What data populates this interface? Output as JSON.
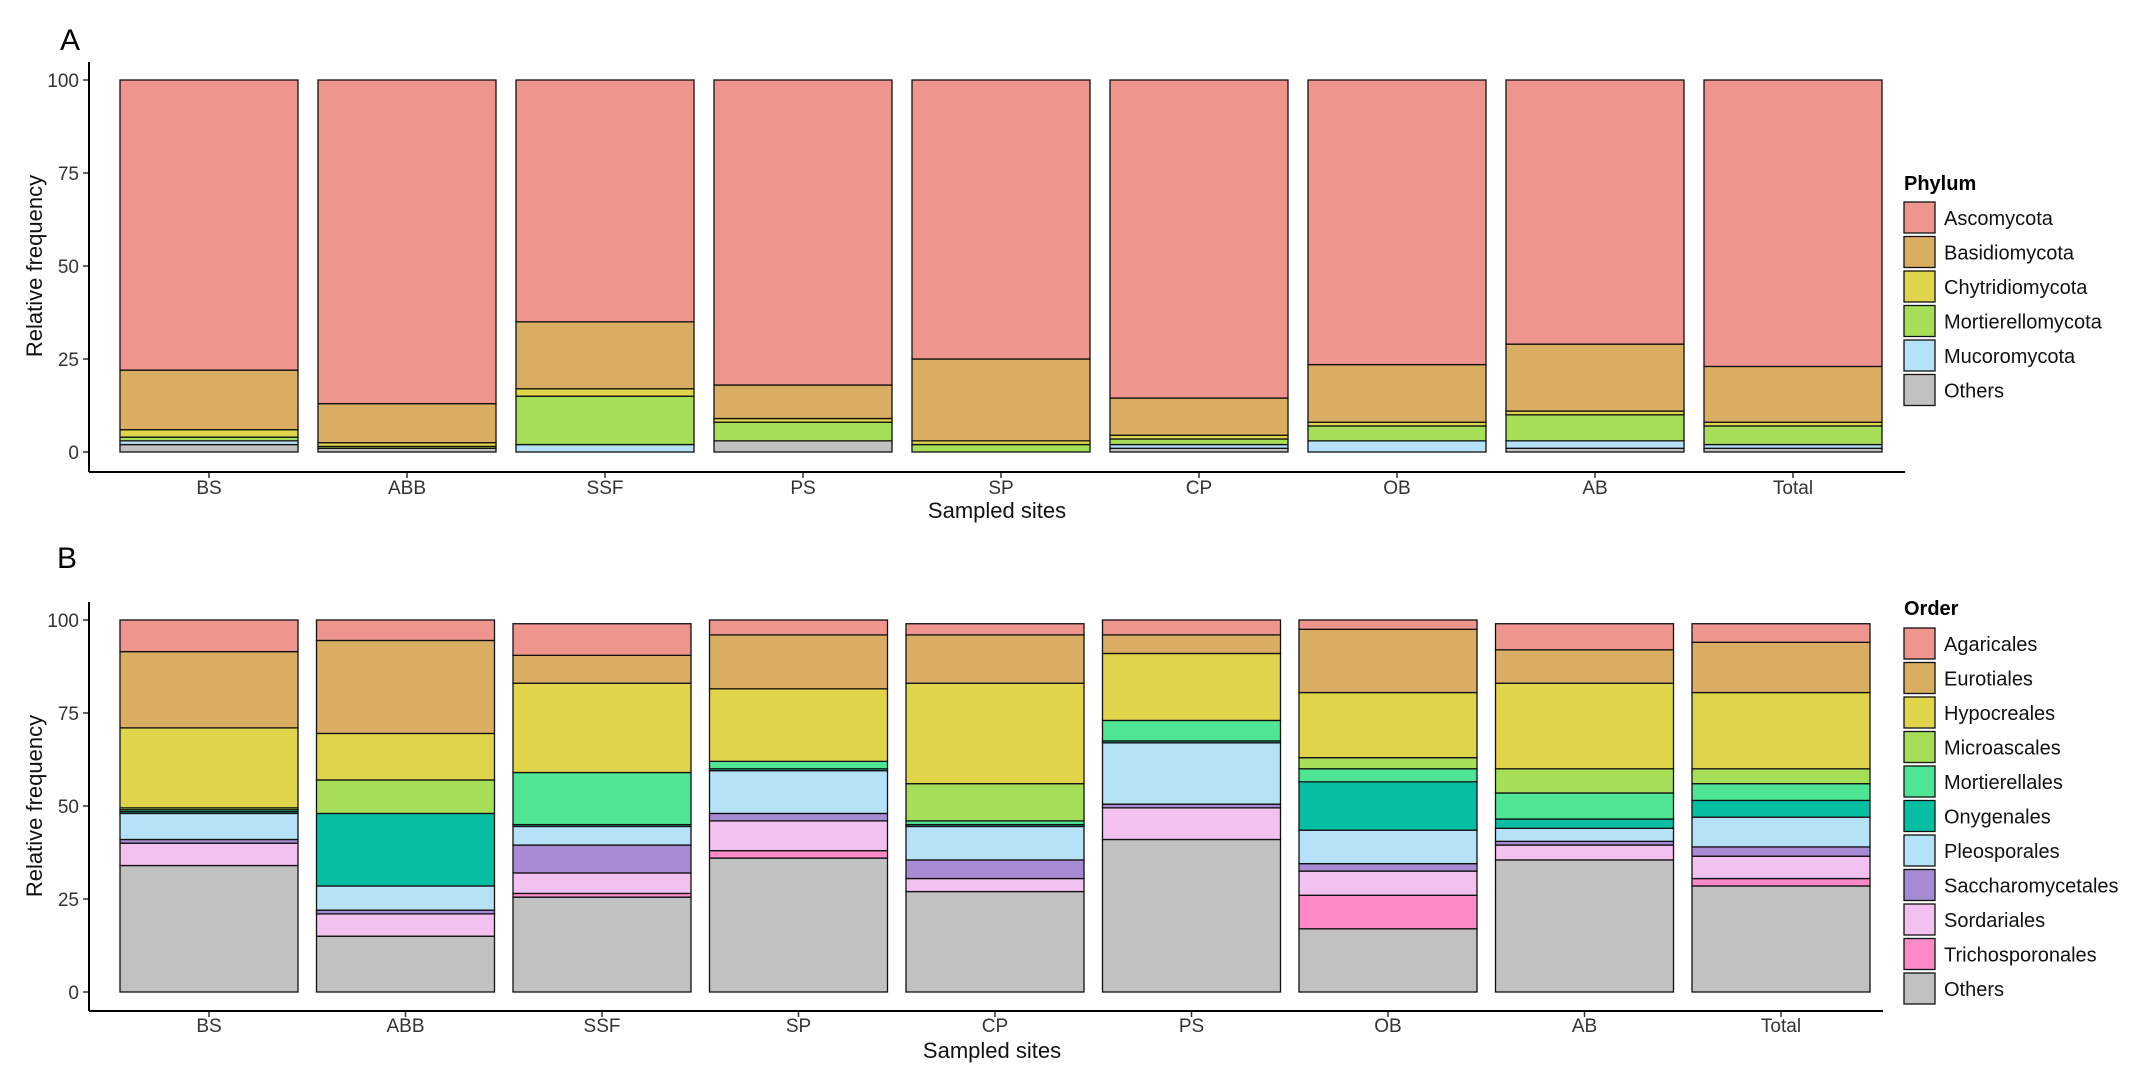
{
  "panels": [
    {
      "label": "A",
      "chart_data": {
        "type": "bar",
        "stacked": true,
        "title": "",
        "xlabel": "Sampled sites",
        "ylabel": "Relative frequency",
        "ylim": [
          0,
          100
        ],
        "yticks": [
          0,
          25,
          50,
          75,
          100
        ],
        "categories": [
          "BS",
          "ABB",
          "SSF",
          "PS",
          "SP",
          "CP",
          "OB",
          "AB",
          "Total"
        ],
        "legend_title": "Phylum",
        "legend_position": "right",
        "series": [
          {
            "name": "Others",
            "color": "#c2c1c1",
            "values": [
              2,
              1,
              0,
              3,
              0,
              1,
              0,
              1,
              1
            ]
          },
          {
            "name": "Mucoromycota",
            "color": "#b5e2f7",
            "values": [
              1,
              0,
              2,
              0,
              0,
              1,
              3,
              2,
              1
            ]
          },
          {
            "name": "Mortierellomycota",
            "color": "#a6de57",
            "values": [
              1,
              0.5,
              13,
              5,
              2,
              1.5,
              4,
              7,
              5
            ]
          },
          {
            "name": "Chytridiomycota",
            "color": "#e0d44a",
            "values": [
              2,
              1,
              2,
              1,
              1,
              1,
              1,
              1,
              1
            ]
          },
          {
            "name": "Basidiomycota",
            "color": "#d9ad62",
            "values": [
              16,
              10.5,
              18,
              9,
              22,
              10,
              15.5,
              18,
              15
            ]
          },
          {
            "name": "Ascomycota",
            "color": "#ee958e",
            "values": [
              78,
              87,
              65,
              82,
              75,
              85.5,
              76.5,
              71,
              77
            ]
          }
        ]
      }
    },
    {
      "label": "B",
      "chart_data": {
        "type": "bar",
        "stacked": true,
        "title": "",
        "xlabel": "Sampled sites",
        "ylabel": "Relative frequency",
        "ylim": [
          0,
          100
        ],
        "yticks": [
          0,
          25,
          50,
          75,
          100
        ],
        "categories": [
          "BS",
          "ABB",
          "SSF",
          "SP",
          "CP",
          "PS",
          "OB",
          "AB",
          "Total"
        ],
        "legend_title": "Order",
        "legend_position": "right",
        "series": [
          {
            "name": "Others",
            "color": "#c2c1c1",
            "values": [
              34,
              15,
              25.5,
              36,
              27,
              41,
              17,
              35.5,
              28.5
            ]
          },
          {
            "name": "Trichosporonales",
            "color": "#fc8ac6",
            "values": [
              0,
              0,
              1,
              2,
              0,
              0,
              9,
              0,
              2
            ]
          },
          {
            "name": "Sordariales",
            "color": "#f3c1ef",
            "values": [
              6,
              6,
              5.5,
              8,
              3.5,
              8.5,
              6.5,
              4,
              6
            ]
          },
          {
            "name": "Saccharomycetales",
            "color": "#a68ad3",
            "values": [
              1,
              1,
              7.5,
              2,
              5,
              1,
              2,
              1,
              2.5
            ]
          },
          {
            "name": "Pleosporales",
            "color": "#b5e2f7",
            "values": [
              7,
              6.5,
              5,
              11.5,
              9,
              16.5,
              9,
              3.5,
              8
            ]
          },
          {
            "name": "Onygenales",
            "color": "#06bea3",
            "values": [
              0.5,
              19.5,
              0.5,
              0.5,
              0.5,
              0.5,
              13,
              2.5,
              4.5
            ]
          },
          {
            "name": "Mortierellales",
            "color": "#4ee594",
            "values": [
              0.5,
              0,
              14,
              2,
              1,
              5.5,
              3.5,
              7,
              4.5
            ]
          },
          {
            "name": "Microascales",
            "color": "#a6de57",
            "values": [
              0.5,
              9,
              0,
              0,
              10,
              0,
              3,
              6.5,
              4
            ]
          },
          {
            "name": "Hypocreales",
            "color": "#e0d44a",
            "values": [
              21.5,
              12.5,
              24,
              19.5,
              27,
              18,
              17.5,
              23,
              20.5
            ]
          },
          {
            "name": "Eurotiales",
            "color": "#d9ad62",
            "values": [
              20.5,
              25,
              7.5,
              14.5,
              13,
              5,
              17,
              9,
              13.5
            ]
          },
          {
            "name": "Agaricales",
            "color": "#ee958e",
            "values": [
              8.5,
              5.5,
              8.5,
              4,
              3,
              4,
              2.5,
              7,
              5
            ]
          }
        ]
      }
    }
  ]
}
